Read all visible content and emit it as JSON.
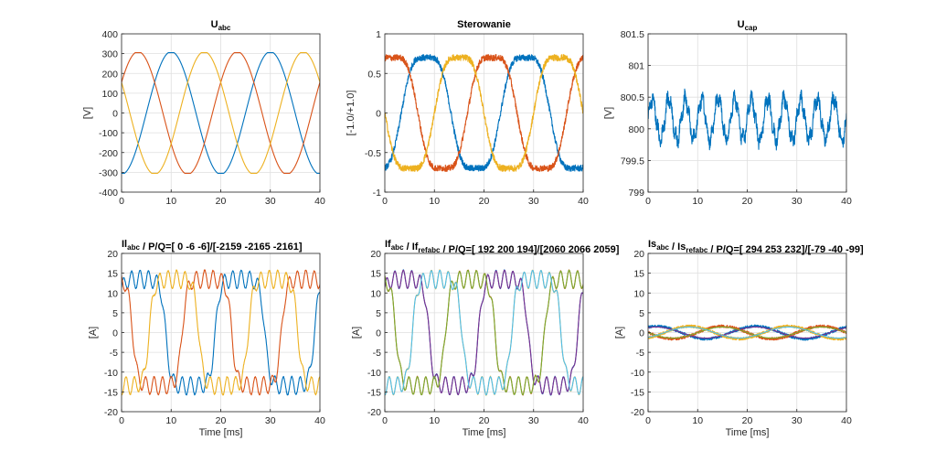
{
  "chart_data": [
    {
      "type": "line",
      "title": {
        "main": "U",
        "sub": "abc",
        "rest": ""
      },
      "xlabel": "",
      "ylabel": "[V]",
      "xlim": [
        0,
        40
      ],
      "ylim": [
        -400,
        400
      ],
      "xticks": [
        0,
        10,
        20,
        30,
        40
      ],
      "yticks": [
        -400,
        -300,
        -200,
        -100,
        0,
        100,
        200,
        300,
        400
      ],
      "grid": true,
      "series": [
        {
          "color": "#0072BD",
          "kind": "sat",
          "amp": 310,
          "clip": 305,
          "noise": 0,
          "phase": -90
        },
        {
          "color": "#D95319",
          "kind": "sat",
          "amp": 310,
          "clip": 305,
          "noise": 0,
          "phase": 30
        },
        {
          "color": "#EDB120",
          "kind": "sat",
          "amp": 310,
          "clip": 305,
          "noise": 0,
          "phase": 150
        }
      ]
    },
    {
      "type": "line",
      "title": {
        "main": "Sterowanie",
        "sub": "",
        "rest": ""
      },
      "xlabel": "",
      "ylabel": "[-1.0/+1.0]",
      "xlim": [
        0,
        40
      ],
      "ylim": [
        -1,
        1
      ],
      "xticks": [
        0,
        10,
        20,
        30,
        40
      ],
      "yticks": [
        -1,
        -0.5,
        0,
        0.5,
        1
      ],
      "grid": true,
      "series": [
        {
          "color": "#0072BD",
          "kind": "sin3",
          "amp": 0.8,
          "noise": 0.04,
          "phase": -60
        },
        {
          "color": "#D95319",
          "kind": "sin3",
          "amp": 0.8,
          "noise": 0.04,
          "phase": 60
        },
        {
          "color": "#EDB120",
          "kind": "sin3",
          "amp": 0.8,
          "noise": 0.04,
          "phase": 180
        }
      ]
    },
    {
      "type": "line",
      "title": {
        "main": "U",
        "sub": "cap",
        "rest": ""
      },
      "xlabel": "",
      "ylabel": "[V]",
      "xlim": [
        0,
        40
      ],
      "ylim": [
        799,
        801.5
      ],
      "xticks": [
        0,
        10,
        20,
        30,
        40
      ],
      "yticks": [
        799,
        799.5,
        800,
        800.5,
        801,
        801.5
      ],
      "grid": true,
      "series": [
        {
          "color": "#0072BD",
          "kind": "ripple",
          "mean": 800.15,
          "amp": 0.32,
          "noise": 0.1
        }
      ]
    },
    {
      "type": "line",
      "title": {
        "main": "Il",
        "sub": "abc",
        "rest": " / P/Q=[ 0 -6 -6]/[-2159 -2165 -2161]"
      },
      "xlabel": "Time [ms]",
      "ylabel": "[A]",
      "xlim": [
        0,
        40
      ],
      "ylim": [
        -20,
        20
      ],
      "xticks": [
        0,
        10,
        20,
        30,
        40
      ],
      "yticks": [
        -20,
        -15,
        -10,
        -5,
        0,
        5,
        10,
        15,
        20
      ],
      "grid": true,
      "series": [
        {
          "color": "#0072BD",
          "kind": "sq",
          "amp": 13.5,
          "ripple": 2.3,
          "noise": 0.15,
          "phase": 20
        },
        {
          "color": "#D95319",
          "kind": "sq",
          "amp": 13.5,
          "ripple": 2.3,
          "noise": 0.15,
          "phase": 140
        },
        {
          "color": "#EDB120",
          "kind": "sq",
          "amp": 13.5,
          "ripple": 2.3,
          "noise": 0.15,
          "phase": 260
        }
      ]
    },
    {
      "type": "line",
      "title": {
        "main": "If",
        "sub": "abc",
        "rest": " / If",
        "sub2": "refabc",
        "rest2": " / P/Q=[ 192  200  194]/[2060  2066  2059]"
      },
      "xlabel": "Time [ms]",
      "ylabel": "[A]",
      "xlim": [
        0,
        40
      ],
      "ylim": [
        -20,
        20
      ],
      "xticks": [
        0,
        10,
        20,
        30,
        40
      ],
      "yticks": [
        -20,
        -15,
        -10,
        -5,
        0,
        5,
        10,
        15,
        20
      ],
      "grid": true,
      "series": [
        {
          "color": "#0072BD",
          "kind": "sq",
          "amp": 13.5,
          "ripple": 2.3,
          "noise": 0.15,
          "phase": 20
        },
        {
          "color": "#D95319",
          "kind": "sq",
          "amp": 13.5,
          "ripple": 2.3,
          "noise": 0.15,
          "phase": 140
        },
        {
          "color": "#EDB120",
          "kind": "sq",
          "amp": 13.5,
          "ripple": 2.3,
          "noise": 0.15,
          "phase": 260
        },
        {
          "color": "#7E2F8E",
          "kind": "sq",
          "amp": 13.5,
          "ripple": 2.3,
          "noise": 0,
          "phase": 20
        },
        {
          "color": "#77AC30",
          "kind": "sq",
          "amp": 13.5,
          "ripple": 2.3,
          "noise": 0,
          "phase": 140
        },
        {
          "color": "#4DBEEE",
          "kind": "sq",
          "amp": 13.5,
          "ripple": 2.3,
          "noise": 0,
          "phase": 260
        }
      ]
    },
    {
      "type": "line",
      "title": {
        "main": "Is",
        "sub": "abc",
        "rest": " / Is",
        "sub2": "refabc",
        "rest2": " / P/Q=[ 294  253  232]/[-79 -40 -99]"
      },
      "xlabel": "Time [ms]",
      "ylabel": "[A]",
      "xlim": [
        0,
        40
      ],
      "ylim": [
        -20,
        20
      ],
      "xticks": [
        0,
        10,
        20,
        30,
        40
      ],
      "yticks": [
        -20,
        -15,
        -10,
        -5,
        0,
        5,
        10,
        15,
        20
      ],
      "grid": true,
      "series": [
        {
          "color": "#0072BD",
          "kind": "sin",
          "amp": 1.6,
          "noise": 0.35,
          "phase": 60
        },
        {
          "color": "#D95319",
          "kind": "sin",
          "amp": 1.6,
          "noise": 0.35,
          "phase": 180
        },
        {
          "color": "#EDB120",
          "kind": "sin",
          "amp": 1.6,
          "noise": 0.35,
          "phase": 300
        },
        {
          "color": "#7E2F8E",
          "kind": "sin",
          "amp": 1.4,
          "noise": 0,
          "phase": 60
        },
        {
          "color": "#77AC30",
          "kind": "sin",
          "amp": 1.4,
          "noise": 0,
          "phase": 180
        },
        {
          "color": "#4DBEEE",
          "kind": "sin",
          "amp": 1.4,
          "noise": 0,
          "phase": 300
        }
      ]
    }
  ]
}
